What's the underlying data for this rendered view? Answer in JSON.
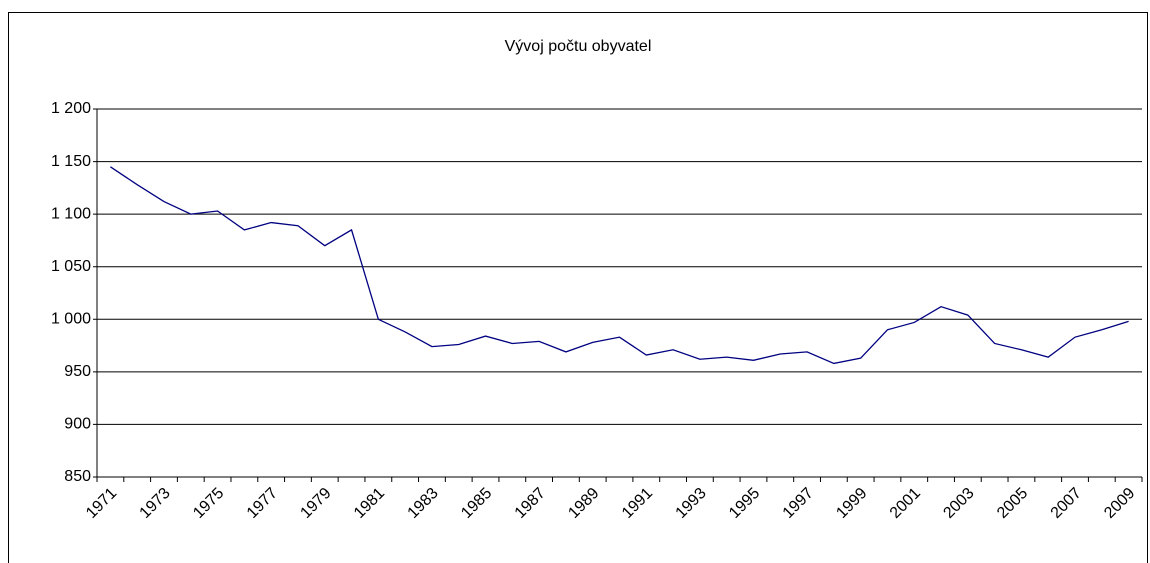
{
  "chart_data": {
    "type": "line",
    "title": "Vývoj počtu obyvatel",
    "categories": [
      "1971",
      null,
      "1973",
      null,
      "1975",
      null,
      "1977",
      null,
      "1979",
      null,
      "1981",
      null,
      "1983",
      null,
      "1985",
      null,
      "1987",
      null,
      "1989",
      null,
      "1991",
      null,
      "1993",
      null,
      "1995",
      null,
      "1997",
      null,
      "1999",
      null,
      "2001",
      null,
      "2003",
      null,
      "2005",
      null,
      "2007",
      null,
      "2009"
    ],
    "series": [
      {
        "color": "#000080",
        "values": [
          1145,
          1128,
          1112,
          1100,
          1103,
          1085,
          1092,
          1089,
          1070,
          1085,
          1000,
          988,
          974,
          976,
          984,
          977,
          979,
          969,
          978,
          983,
          966,
          971,
          962,
          964,
          961,
          967,
          969,
          958,
          963,
          990,
          997,
          1012,
          1004,
          977,
          971,
          964,
          983,
          990,
          998
        ]
      }
    ],
    "ylim": [
      850,
      1200
    ],
    "yticks": [
      850,
      900,
      950,
      {
        "value": 1000,
        "label": "1 000"
      },
      {
        "value": 1050,
        "label": "1 050"
      },
      {
        "value": 1100,
        "label": "1 100"
      },
      {
        "value": 1150,
        "label": "1 150"
      },
      {
        "value": 1200,
        "label": "1 200"
      }
    ],
    "grid": true
  }
}
